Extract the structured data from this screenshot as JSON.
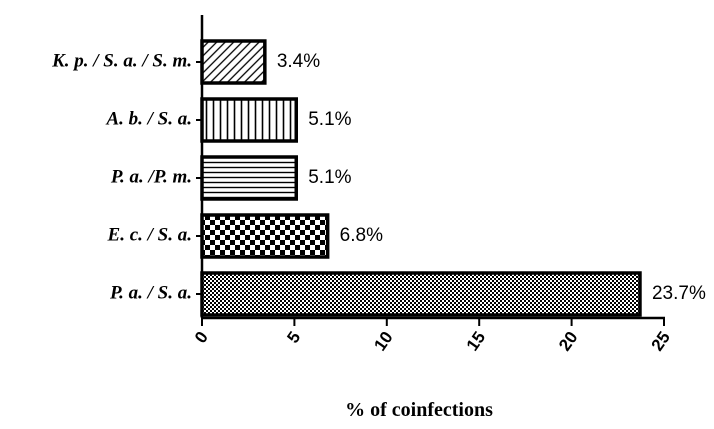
{
  "chart_data": {
    "type": "bar",
    "orientation": "horizontal",
    "categories": [
      "P. a. / S. a.",
      "E. c. / S. a.",
      "P. a. /P. m.",
      "A. b. / S. a.",
      "K. p. / S. a. / S. m."
    ],
    "values": [
      23.7,
      6.8,
      5.1,
      5.1,
      3.4
    ],
    "data_labels": [
      "23.7%",
      "6.8%",
      "5.1%",
      "5.1%",
      "3.4%"
    ],
    "patterns": [
      "fine-checker",
      "checker",
      "horizontal-lines",
      "vertical-lines",
      "diagonal-lines"
    ],
    "xlabel": "% of coinfections",
    "ylabel": "",
    "xlim": [
      0,
      25
    ],
    "xticks": [
      0,
      5,
      10,
      15,
      20,
      25
    ],
    "grid": false,
    "legend": "none",
    "colors": {
      "fill": "#ffffff",
      "stroke": "#000000"
    }
  }
}
